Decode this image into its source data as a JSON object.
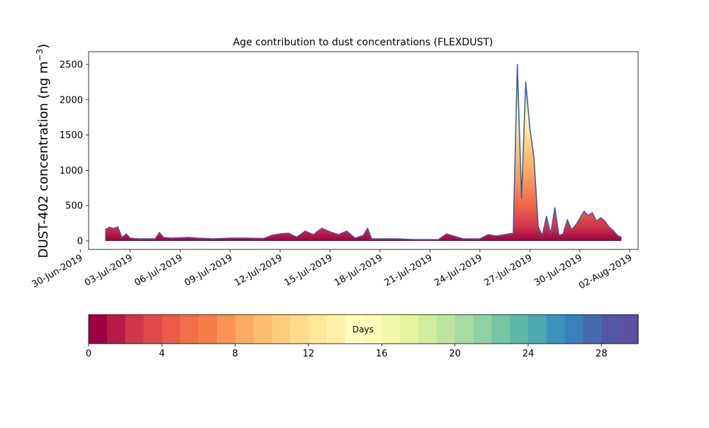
{
  "chart_data": {
    "type": "area",
    "title": "Age contribution to dust concentrations (FLEXDUST)",
    "ylabel_main": "DUST-402 concentration (ng m",
    "ylabel_exp": "−3",
    "ylabel_close": ")",
    "ylim": [
      -120,
      2680
    ],
    "yticks": [
      0,
      500,
      1000,
      1500,
      2000,
      2500
    ],
    "xlim": [
      "2019-06-30T12:00",
      "2019-08-02T12:00"
    ],
    "xticks": [
      {
        "date": "2019-06-30",
        "label": "30-Jun-2019"
      },
      {
        "date": "2019-07-03",
        "label": "03-Jul-2019"
      },
      {
        "date": "2019-07-06",
        "label": "06-Jul-2019"
      },
      {
        "date": "2019-07-09",
        "label": "09-Jul-2019"
      },
      {
        "date": "2019-07-12",
        "label": "12-Jul-2019"
      },
      {
        "date": "2019-07-15",
        "label": "15-Jul-2019"
      },
      {
        "date": "2019-07-18",
        "label": "18-Jul-2019"
      },
      {
        "date": "2019-07-21",
        "label": "21-Jul-2019"
      },
      {
        "date": "2019-07-24",
        "label": "24-Jul-2019"
      },
      {
        "date": "2019-07-27",
        "label": "27-Jul-2019"
      },
      {
        "date": "2019-07-30",
        "label": "30-Jul-2019"
      },
      {
        "date": "2019-08-02",
        "label": "02-Aug-2019"
      }
    ],
    "total": {
      "x": [
        "2019-07-01T12:00",
        "2019-07-01T18:00",
        "2019-07-02T00:00",
        "2019-07-02T06:00",
        "2019-07-02T12:00",
        "2019-07-02T18:00",
        "2019-07-03T00:00",
        "2019-07-03T12:00",
        "2019-07-04T00:00",
        "2019-07-04T12:00",
        "2019-07-04T18:00",
        "2019-07-05T00:00",
        "2019-07-05T12:00",
        "2019-07-06T12:00",
        "2019-07-07T00:00",
        "2019-07-08T00:00",
        "2019-07-09T00:00",
        "2019-07-10T00:00",
        "2019-07-11T00:00",
        "2019-07-11T12:00",
        "2019-07-12T00:00",
        "2019-07-12T12:00",
        "2019-07-13T00:00",
        "2019-07-13T12:00",
        "2019-07-14T00:00",
        "2019-07-14T12:00",
        "2019-07-15T00:00",
        "2019-07-15T12:00",
        "2019-07-16T00:00",
        "2019-07-16T12:00",
        "2019-07-17T00:00",
        "2019-07-17T06:00",
        "2019-07-17T12:00",
        "2019-07-18T00:00",
        "2019-07-19T00:00",
        "2019-07-20T00:00",
        "2019-07-21T00:00",
        "2019-07-21T12:00",
        "2019-07-22T00:00",
        "2019-07-23T00:00",
        "2019-07-24T00:00",
        "2019-07-24T12:00",
        "2019-07-25T00:00",
        "2019-07-25T12:00",
        "2019-07-26T00:00",
        "2019-07-26T06:00",
        "2019-07-26T12:00",
        "2019-07-26T18:00",
        "2019-07-27T00:00",
        "2019-07-27T06:00",
        "2019-07-27T12:00",
        "2019-07-27T18:00",
        "2019-07-28T00:00",
        "2019-07-28T06:00",
        "2019-07-28T12:00",
        "2019-07-28T18:00",
        "2019-07-29T00:00",
        "2019-07-29T06:00",
        "2019-07-29T12:00",
        "2019-07-29T18:00",
        "2019-07-30T00:00",
        "2019-07-30T06:00",
        "2019-07-30T12:00",
        "2019-07-30T18:00",
        "2019-07-31T00:00",
        "2019-07-31T06:00",
        "2019-07-31T12:00",
        "2019-07-31T18:00",
        "2019-08-01T00:00",
        "2019-08-01T06:00",
        "2019-08-01T12:00"
      ],
      "y": [
        160,
        195,
        175,
        200,
        50,
        100,
        40,
        30,
        30,
        30,
        120,
        50,
        40,
        50,
        40,
        30,
        40,
        40,
        35,
        80,
        100,
        110,
        55,
        140,
        90,
        180,
        130,
        90,
        140,
        40,
        80,
        180,
        30,
        30,
        30,
        20,
        20,
        20,
        100,
        30,
        30,
        90,
        70,
        90,
        110,
        2500,
        600,
        2250,
        1600,
        1170,
        200,
        80,
        350,
        100,
        470,
        80,
        100,
        300,
        160,
        220,
        320,
        420,
        360,
        400,
        280,
        330,
        280,
        200,
        150,
        80,
        50
      ]
    },
    "colorbar": {
      "label": "Days",
      "min": 0,
      "max": 30,
      "ticks": [
        0,
        4,
        8,
        12,
        16,
        20,
        24,
        28
      ],
      "colors": [
        "#9e0142",
        "#b71c48",
        "#d0354a",
        "#df4b4b",
        "#e95c47",
        "#f06e48",
        "#f67d4a",
        "#f99356",
        "#fca962",
        "#fdbe6f",
        "#fecd7b",
        "#fedb89",
        "#fee897",
        "#fff1a8",
        "#fffebe",
        "#f8fcb4",
        "#f1f9a9",
        "#e4f49c",
        "#d0ec9c",
        "#bde5a0",
        "#a6dba4",
        "#8fd1a4",
        "#76c6a5",
        "#5fb9a9",
        "#4ca9b1",
        "#3b94ba",
        "#3981ba",
        "#456ab0",
        "#5356a5",
        "#5e4fa2"
      ]
    }
  }
}
